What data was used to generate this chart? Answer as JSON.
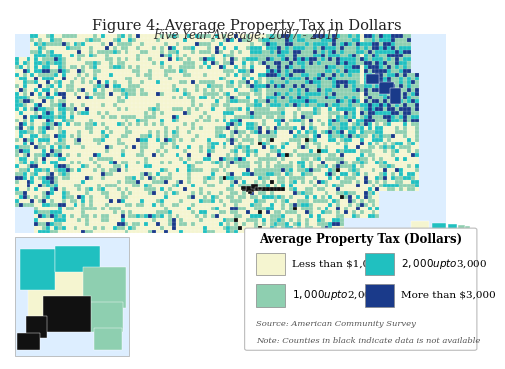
{
  "title": "Figure 4: Average Property Tax in Dollars",
  "subtitle": "Five Year Average: 2007 - 2011",
  "legend_title": "Average Property Tax (Dollars)",
  "legend_items": [
    {
      "label": "Less than $1,000",
      "color": "#f5f5d0"
    },
    {
      "label": "$1,000 up to $2,000",
      "color": "#8ecfb0"
    },
    {
      "label": "$2,000 up to $3,000",
      "color": "#20c0c0"
    },
    {
      "label": "More than $3,000",
      "color": "#1a3a8a"
    }
  ],
  "no_data_color": "#111111",
  "water_color": "#ddeeff",
  "border_color": "#ffffff",
  "source_text": "Source: American Community Survey",
  "note_text": "Note: Counties in black indicate data is not available",
  "bg_color": "#ffffff",
  "title_fontsize": 10.5,
  "subtitle_fontsize": 8.5,
  "legend_title_fontsize": 8.5,
  "legend_fontsize": 7.5
}
